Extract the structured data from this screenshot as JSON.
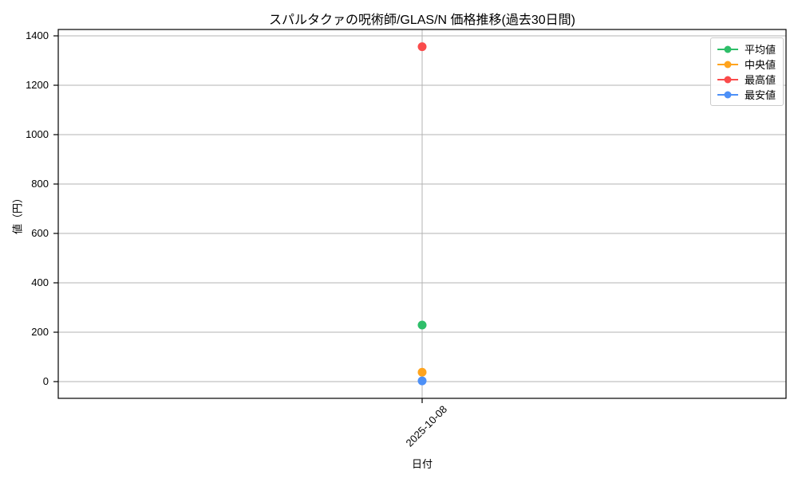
{
  "chart_data": {
    "type": "scatter",
    "title": "スパルタクァの呪術師/GLAS/N 価格推移(過去30日間)",
    "xlabel": "日付",
    "ylabel": "値（円）",
    "categories": [
      "2025-10-08"
    ],
    "series": [
      {
        "name": "平均値",
        "color": "#2EBE69",
        "values": [
          229
        ]
      },
      {
        "name": "中央値",
        "color": "#FFA41E",
        "values": [
          38
        ]
      },
      {
        "name": "最高値",
        "color": "#FA4B4B",
        "values": [
          1356
        ]
      },
      {
        "name": "最安値",
        "color": "#4D90F7",
        "values": [
          3
        ]
      }
    ],
    "ylim": [
      0,
      1400
    ],
    "yticks": [
      0,
      200,
      400,
      600,
      800,
      1000,
      1200,
      1400
    ],
    "grid": true,
    "grid_color": "#b3b3b3",
    "spine_color": "#000000",
    "background": "#ffffff",
    "legend_position": "upper right",
    "marker": "circle"
  }
}
